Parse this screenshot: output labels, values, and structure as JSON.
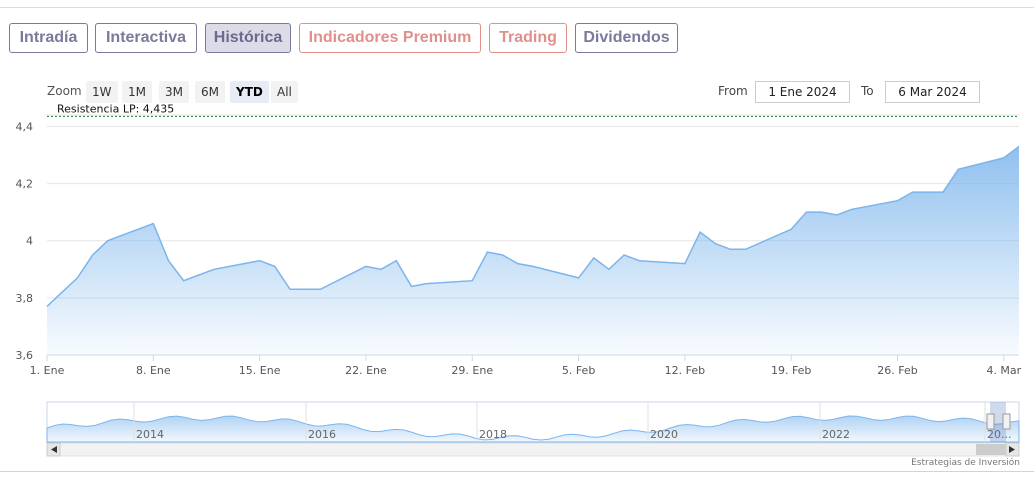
{
  "tabs": [
    {
      "label": "Intradía",
      "kind": "normal"
    },
    {
      "label": "Interactiva",
      "kind": "normal"
    },
    {
      "label": "Histórica",
      "kind": "active"
    },
    {
      "label": "Indicadores Premium",
      "kind": "premium"
    },
    {
      "label": "Trading",
      "kind": "premium"
    },
    {
      "label": "Dividendos",
      "kind": "normal"
    }
  ],
  "zoom": {
    "label": "Zoom",
    "options": [
      "1W",
      "1M",
      "3M",
      "6M",
      "YTD",
      "All"
    ],
    "selected": "YTD"
  },
  "range": {
    "from_label": "From",
    "from_value": "1 Ene 2024",
    "to_label": "To",
    "to_value": "6 Mar 2024"
  },
  "credits": "Estrategias de Inversión",
  "colors": {
    "tab": "#7a7a9c",
    "premium": "#e0908c",
    "line": "#7cb5ec",
    "resistance": "#1f7a3a"
  },
  "chart_data": {
    "type": "area",
    "x_tick_labels": [
      "1. Ene",
      "8. Ene",
      "15. Ene",
      "22. Ene",
      "29. Ene",
      "5. Feb",
      "12. Feb",
      "19. Feb",
      "26. Feb",
      "4. Mar"
    ],
    "y_tick_labels": [
      "3,6",
      "3,8",
      "4",
      "4,2",
      "4,4"
    ],
    "ylim": [
      3.6,
      4.44
    ],
    "xlim": [
      "2024-01-01",
      "2024-03-05"
    ],
    "grid": true,
    "annotation": {
      "label": "Resistencia LP: 4,435",
      "value": 4.435
    },
    "series": [
      {
        "x": [
          "2024-01-01",
          "2024-01-02",
          "2024-01-03",
          "2024-01-04",
          "2024-01-05",
          "2024-01-08",
          "2024-01-09",
          "2024-01-10",
          "2024-01-11",
          "2024-01-12",
          "2024-01-15",
          "2024-01-16",
          "2024-01-17",
          "2024-01-18",
          "2024-01-19",
          "2024-01-22",
          "2024-01-23",
          "2024-01-24",
          "2024-01-25",
          "2024-01-26",
          "2024-01-29",
          "2024-01-30",
          "2024-01-31",
          "2024-02-01",
          "2024-02-02",
          "2024-02-05",
          "2024-02-06",
          "2024-02-07",
          "2024-02-08",
          "2024-02-09",
          "2024-02-12",
          "2024-02-13",
          "2024-02-14",
          "2024-02-15",
          "2024-02-16",
          "2024-02-19",
          "2024-02-20",
          "2024-02-21",
          "2024-02-22",
          "2024-02-23",
          "2024-02-26",
          "2024-02-27",
          "2024-02-28",
          "2024-02-29",
          "2024-03-01",
          "2024-03-04",
          "2024-03-05"
        ],
        "y": [
          3.77,
          3.82,
          3.87,
          3.95,
          4.0,
          4.06,
          3.93,
          3.86,
          3.88,
          3.9,
          3.93,
          3.91,
          3.83,
          3.83,
          3.83,
          3.91,
          3.9,
          3.93,
          3.84,
          3.85,
          3.86,
          3.96,
          3.95,
          3.92,
          3.91,
          3.87,
          3.94,
          3.9,
          3.95,
          3.93,
          3.92,
          4.03,
          3.99,
          3.97,
          3.97,
          4.04,
          4.1,
          4.1,
          4.09,
          4.11,
          4.14,
          4.17,
          4.17,
          4.17,
          4.25,
          4.29,
          4.33
        ]
      }
    ],
    "navigator": {
      "year_labels": [
        "2014",
        "2016",
        "2018",
        "2020",
        "2022",
        "20..."
      ]
    }
  }
}
